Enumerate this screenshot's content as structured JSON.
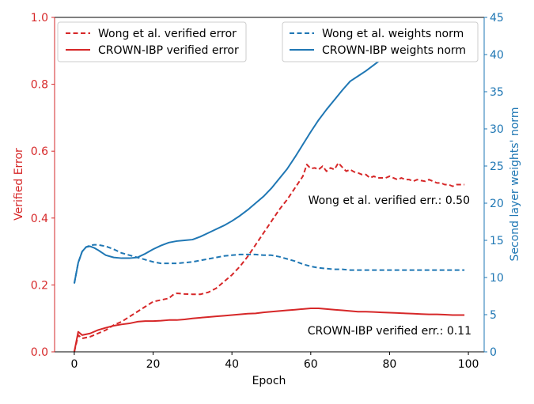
{
  "colors": {
    "red": "#d62728",
    "blue": "#1f77b4",
    "axis": "#000000"
  },
  "chart_data": {
    "type": "line",
    "xlabel": "Epoch",
    "ylabel_left": "Verified Error",
    "ylabel_right": "Second layer weights' norm",
    "xlim": [
      -5,
      104
    ],
    "ylim_left": [
      0,
      1.0
    ],
    "ylim_right": [
      0,
      45
    ],
    "xticks": [
      0,
      20,
      40,
      60,
      80,
      100
    ],
    "yticks_left": [
      "0.0",
      "0.2",
      "0.4",
      "0.6",
      "0.8",
      "1.0"
    ],
    "yticks_right": [
      "0",
      "5",
      "10",
      "15",
      "20",
      "25",
      "30",
      "35",
      "40",
      "45"
    ],
    "grid": false,
    "legend_left": {
      "placement": "top-left",
      "entries": [
        {
          "label": "Wong et al. verified error",
          "series": "wong_err"
        },
        {
          "label": "CROWN-IBP verified error",
          "series": "crown_err"
        }
      ]
    },
    "legend_right": {
      "placement": "top-right",
      "entries": [
        {
          "label": "Wong et al. weights norm",
          "series": "wong_norm"
        },
        {
          "label": "CROWN-IBP weights norm",
          "series": "crown_norm"
        }
      ]
    },
    "annotations": [
      {
        "text": "Wong et al. verified err.: 0.50"
      },
      {
        "text": "CROWN-IBP verified err.: 0.11"
      }
    ],
    "series": [
      {
        "id": "wong_err",
        "axis": "left",
        "style": "dashed",
        "color": "red",
        "x": [
          0,
          1,
          2,
          4,
          6,
          8,
          10,
          12,
          14,
          16,
          18,
          20,
          22,
          24,
          25,
          26,
          28,
          30,
          32,
          34,
          36,
          38,
          40,
          42,
          44,
          46,
          48,
          50,
          52,
          54,
          56,
          58,
          59,
          60,
          61,
          62,
          63,
          64,
          65,
          66,
          67,
          68,
          69,
          70,
          71,
          72,
          73,
          74,
          75,
          76,
          77,
          78,
          79,
          80,
          81,
          82,
          83,
          84,
          85,
          86,
          87,
          88,
          89,
          90,
          91,
          92,
          93,
          94,
          95,
          96,
          97,
          98,
          99
        ],
        "y": [
          0.0,
          0.05,
          0.04,
          0.045,
          0.055,
          0.065,
          0.08,
          0.09,
          0.105,
          0.12,
          0.135,
          0.15,
          0.155,
          0.16,
          0.17,
          0.175,
          0.173,
          0.172,
          0.172,
          0.178,
          0.19,
          0.21,
          0.23,
          0.255,
          0.285,
          0.32,
          0.355,
          0.39,
          0.425,
          0.455,
          0.49,
          0.525,
          0.56,
          0.548,
          0.55,
          0.545,
          0.555,
          0.54,
          0.55,
          0.545,
          0.565,
          0.552,
          0.54,
          0.545,
          0.538,
          0.535,
          0.53,
          0.53,
          0.52,
          0.525,
          0.52,
          0.52,
          0.52,
          0.525,
          0.52,
          0.515,
          0.52,
          0.515,
          0.515,
          0.51,
          0.515,
          0.512,
          0.51,
          0.515,
          0.51,
          0.505,
          0.505,
          0.5,
          0.5,
          0.495,
          0.5,
          0.5,
          0.5
        ]
      },
      {
        "id": "crown_err",
        "axis": "left",
        "style": "solid",
        "color": "red",
        "x": [
          0,
          1,
          2,
          4,
          6,
          8,
          10,
          12,
          14,
          16,
          18,
          20,
          22,
          24,
          26,
          28,
          30,
          32,
          34,
          36,
          38,
          40,
          42,
          44,
          46,
          48,
          50,
          52,
          54,
          56,
          58,
          60,
          62,
          64,
          66,
          68,
          70,
          72,
          74,
          76,
          78,
          80,
          82,
          84,
          86,
          88,
          90,
          92,
          94,
          96,
          98,
          99
        ],
        "y": [
          0.0,
          0.06,
          0.05,
          0.055,
          0.065,
          0.072,
          0.078,
          0.082,
          0.085,
          0.09,
          0.092,
          0.092,
          0.093,
          0.095,
          0.095,
          0.097,
          0.1,
          0.102,
          0.104,
          0.106,
          0.108,
          0.11,
          0.112,
          0.114,
          0.115,
          0.118,
          0.12,
          0.122,
          0.124,
          0.126,
          0.128,
          0.13,
          0.13,
          0.128,
          0.126,
          0.124,
          0.122,
          0.12,
          0.12,
          0.119,
          0.118,
          0.117,
          0.116,
          0.115,
          0.114,
          0.113,
          0.112,
          0.112,
          0.111,
          0.11,
          0.11,
          0.11
        ]
      },
      {
        "id": "wong_norm",
        "axis": "right",
        "style": "dashed",
        "color": "blue",
        "x": [
          0,
          1,
          2,
          3,
          4,
          5,
          6,
          7,
          8,
          10,
          12,
          14,
          16,
          18,
          20,
          22,
          24,
          26,
          28,
          30,
          32,
          34,
          36,
          38,
          40,
          42,
          44,
          46,
          48,
          50,
          52,
          54,
          56,
          58,
          60,
          62,
          64,
          66,
          68,
          70,
          72,
          74,
          76,
          78,
          80,
          82,
          84,
          86,
          88,
          90,
          92,
          94,
          96,
          98,
          99
        ],
        "y": [
          9.2,
          12.0,
          13.5,
          14.1,
          14.3,
          14.4,
          14.4,
          14.3,
          14.2,
          13.8,
          13.3,
          13.0,
          12.7,
          12.4,
          12.1,
          11.9,
          11.9,
          11.9,
          12.0,
          12.1,
          12.3,
          12.5,
          12.7,
          12.9,
          13.0,
          13.1,
          13.1,
          13.1,
          13.0,
          13.0,
          12.8,
          12.5,
          12.2,
          11.8,
          11.5,
          11.3,
          11.2,
          11.1,
          11.1,
          11.0,
          11.0,
          11.0,
          11.0,
          11.0,
          11.0,
          11.0,
          11.0,
          11.0,
          11.0,
          11.0,
          11.0,
          11.0,
          11.0,
          11.0,
          11.0
        ]
      },
      {
        "id": "crown_norm",
        "axis": "right",
        "style": "solid",
        "color": "blue",
        "x": [
          0,
          1,
          2,
          3,
          4,
          5,
          6,
          8,
          10,
          12,
          14,
          16,
          18,
          20,
          22,
          24,
          26,
          28,
          30,
          32,
          34,
          36,
          38,
          40,
          42,
          44,
          46,
          48,
          50,
          52,
          54,
          56,
          58,
          60,
          62,
          64,
          66,
          68,
          70,
          72,
          74,
          76,
          78,
          80,
          82,
          84,
          86,
          88,
          90,
          92,
          94,
          96,
          98,
          99
        ],
        "y": [
          9.2,
          12.0,
          13.5,
          14.1,
          14.2,
          14.0,
          13.7,
          13.0,
          12.7,
          12.6,
          12.6,
          12.7,
          13.2,
          13.8,
          14.3,
          14.7,
          14.9,
          15.0,
          15.1,
          15.5,
          16.0,
          16.5,
          17.0,
          17.6,
          18.3,
          19.1,
          20.0,
          20.9,
          22.0,
          23.3,
          24.6,
          26.2,
          27.9,
          29.6,
          31.2,
          32.6,
          33.9,
          35.2,
          36.4,
          37.1,
          37.8,
          38.6,
          39.4,
          40.0,
          40.3,
          40.6,
          40.8,
          41.0,
          41.2,
          41.4,
          41.5,
          41.6,
          41.7,
          41.7
        ]
      }
    ]
  }
}
